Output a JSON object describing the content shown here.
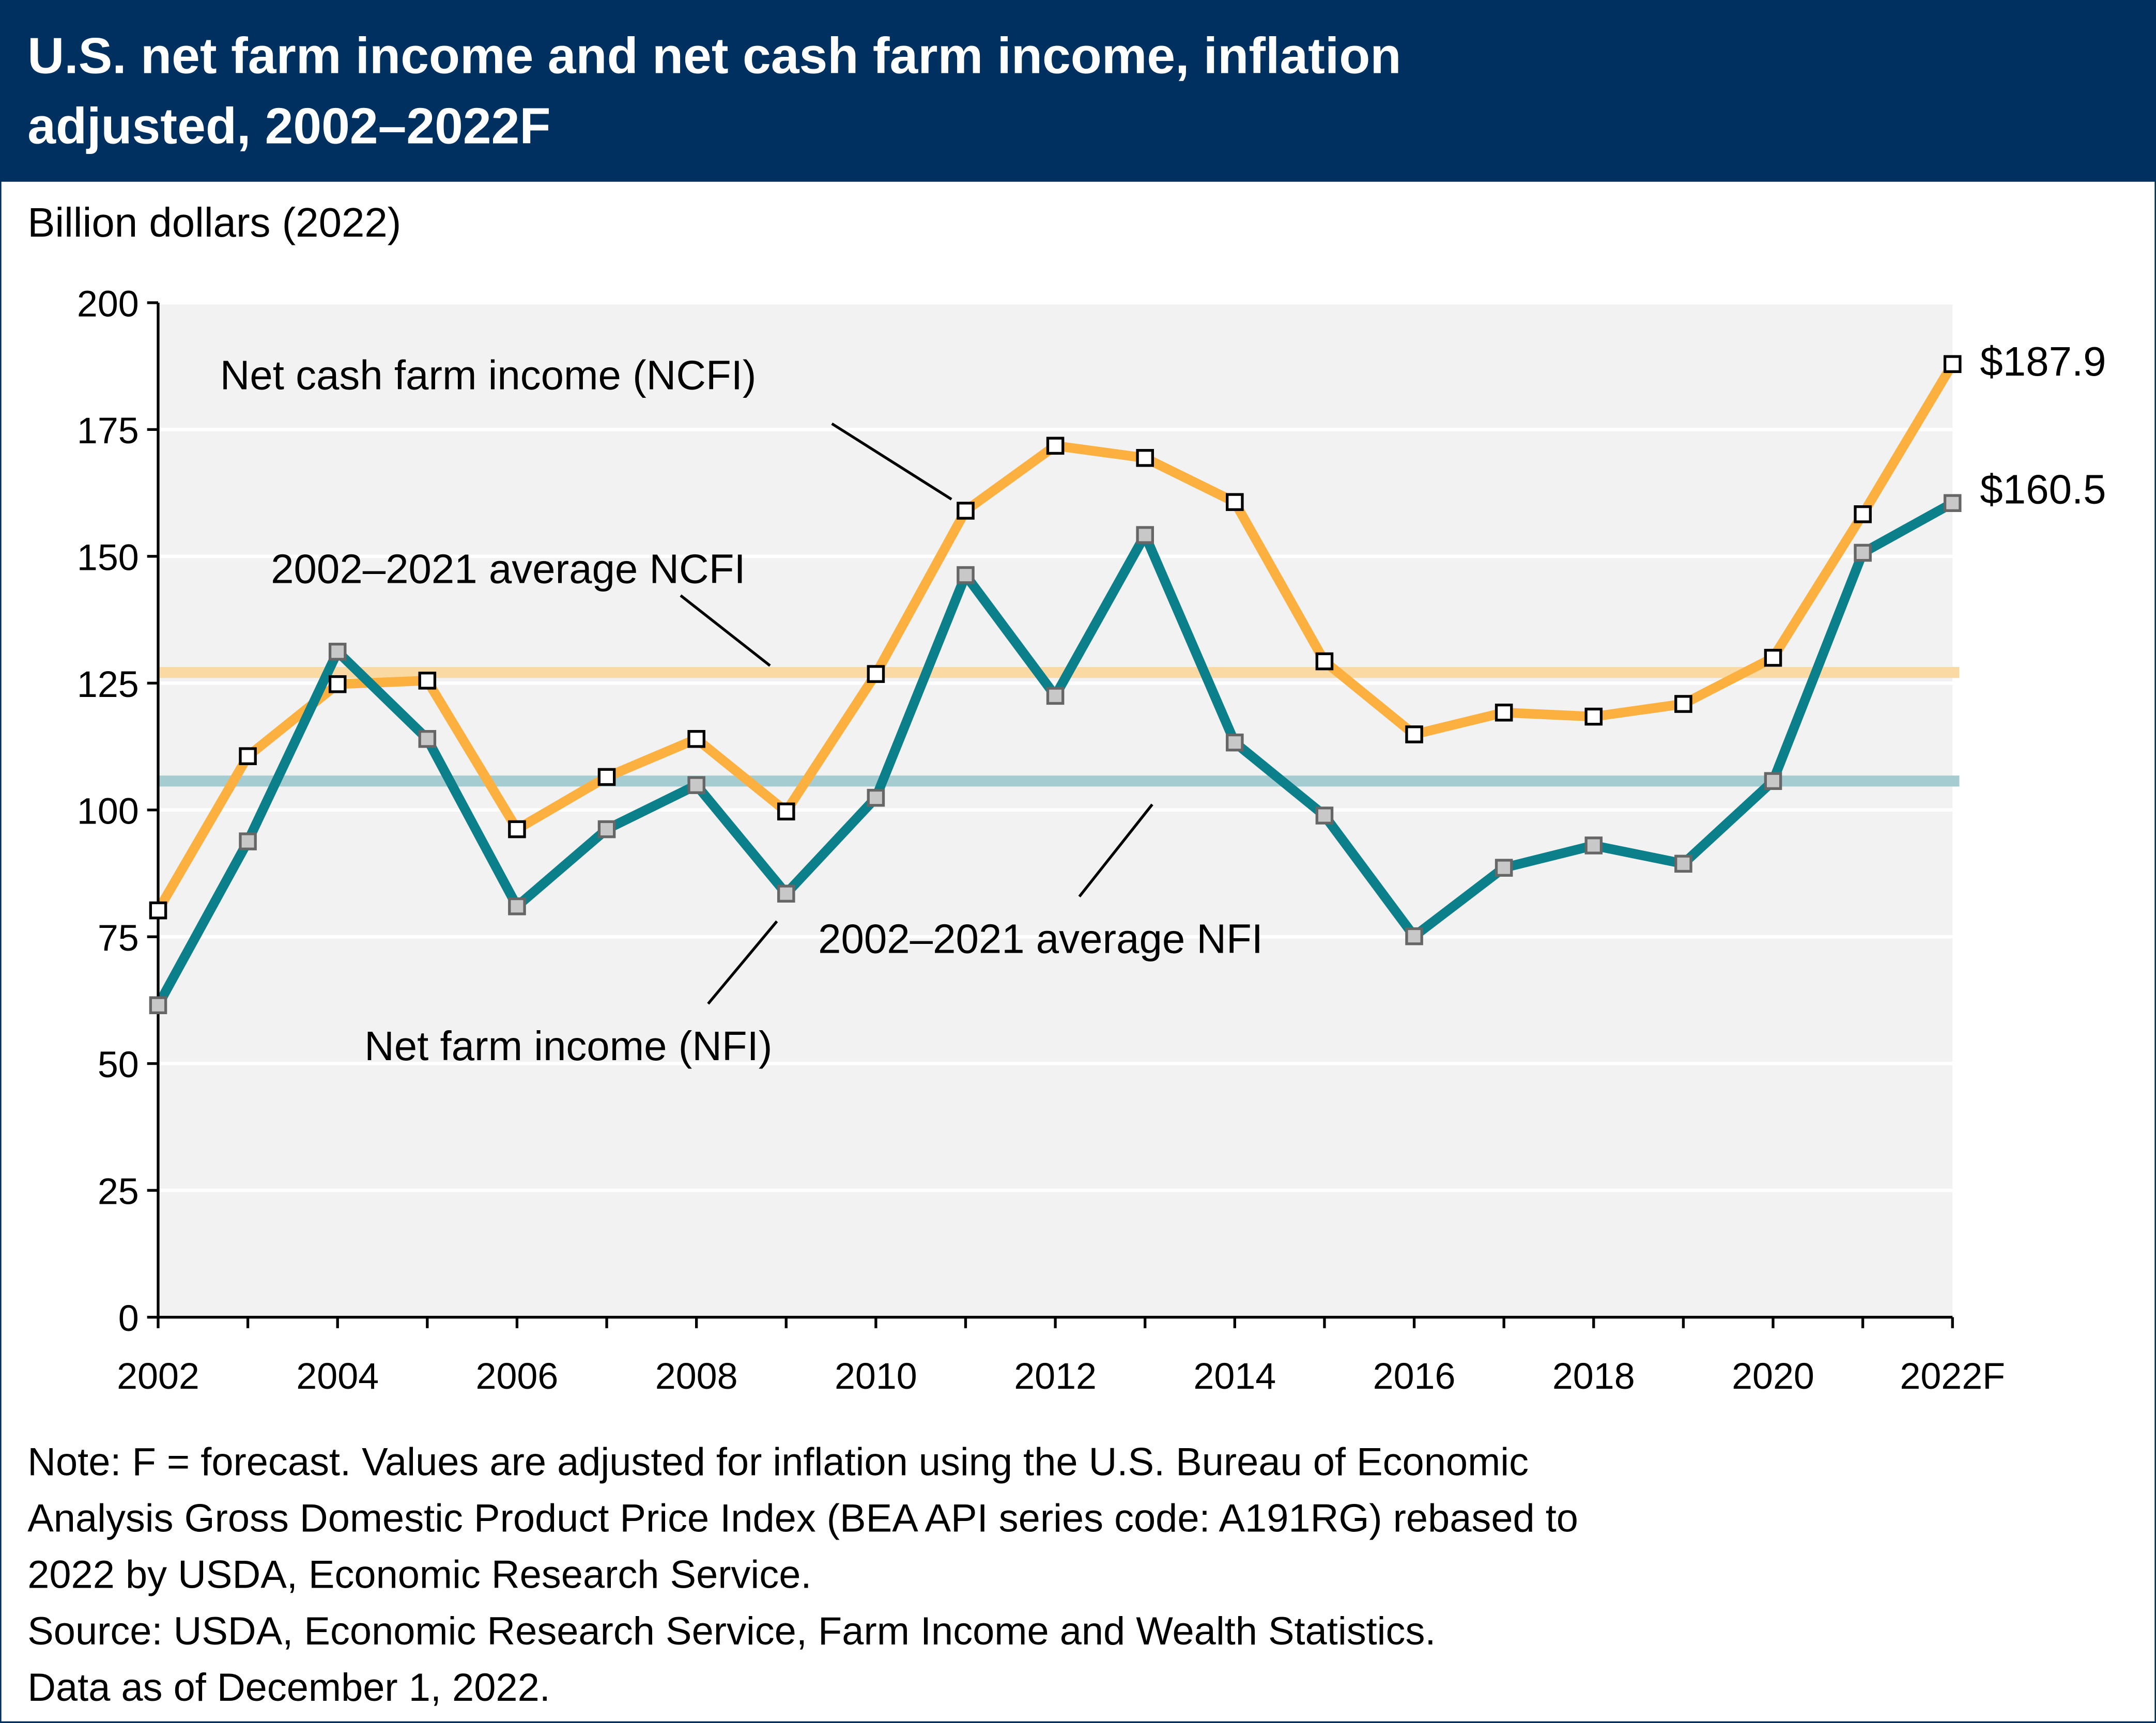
{
  "title_lines": [
    "U.S. net farm income and net cash farm income, inflation",
    "adjusted, 2002–2022F"
  ],
  "colors": {
    "header": "#00305f",
    "ncfi": "#fbb040",
    "nfi": "#0b7f8a",
    "ncfi_avg": "#fbd9a3",
    "nfi_avg": "#a5cdd1",
    "plot_bg": "#f2f2f2"
  },
  "chart_data": {
    "type": "line",
    "ylabel": "Billion dollars (2022)",
    "ylim": [
      0,
      200
    ],
    "yticks": [
      "0",
      "25",
      "50",
      "75",
      "100",
      "125",
      "150",
      "175",
      "200"
    ],
    "x": [
      2002,
      2003,
      2004,
      2005,
      2006,
      2007,
      2008,
      2009,
      2010,
      2011,
      2012,
      2013,
      2014,
      2015,
      2016,
      2017,
      2018,
      2019,
      2020,
      2021,
      2022
    ],
    "xtick_labels": [
      "2002",
      "2004",
      "2006",
      "2008",
      "2010",
      "2012",
      "2014",
      "2016",
      "2018",
      "2020",
      "2022F"
    ],
    "grid": true,
    "series": [
      {
        "name": "Net cash farm income (NCFI)",
        "values": [
          80.2,
          110.6,
          124.8,
          125.5,
          96.2,
          106.5,
          114.0,
          99.7,
          126.8,
          159.0,
          171.8,
          169.4,
          160.7,
          129.3,
          114.9,
          119.2,
          118.4,
          120.9,
          130.0,
          158.3,
          187.9
        ]
      },
      {
        "name": "Net farm income (NFI)",
        "values": [
          61.5,
          93.8,
          131.2,
          114.0,
          81.0,
          96.2,
          104.9,
          83.5,
          102.4,
          146.3,
          122.5,
          154.2,
          113.3,
          98.9,
          75.1,
          88.6,
          93.0,
          89.4,
          105.7,
          150.7,
          160.5
        ]
      }
    ],
    "averages": [
      {
        "name": "2002–2021 average NCFI",
        "value": 127.1
      },
      {
        "name": "2002–2021 average NFI",
        "value": 105.7
      }
    ],
    "end_labels": [
      "$187.9",
      "$160.5"
    ]
  },
  "notes": [
    "Note: F = forecast. Values are adjusted for inflation using the U.S. Bureau of Economic",
    "Analysis Gross Domestic Product Price Index (BEA API series code: A191RG) rebased to",
    "2022 by USDA, Economic Research Service.",
    "Source: USDA, Economic Research Service, Farm Income and Wealth Statistics.",
    "Data as of December 1, 2022."
  ]
}
